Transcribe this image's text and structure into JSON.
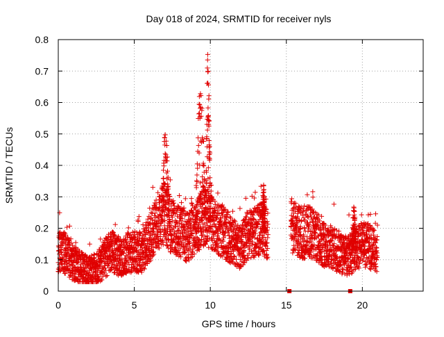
{
  "chart_data": {
    "type": "scatter",
    "title": "Day 018 of 2024, SRMTID for receiver nyls",
    "xlabel": "GPS time / hours",
    "ylabel": "SRMTID / TECUs",
    "xlim": [
      0,
      24
    ],
    "ylim": [
      0,
      0.8
    ],
    "xticks": [
      "0",
      "5",
      "10",
      "15",
      "20"
    ],
    "yticks": [
      "0",
      "0.1",
      "0.2",
      "0.3",
      "0.4",
      "0.5",
      "0.6",
      "0.7",
      "0.8"
    ],
    "grid": true,
    "marker": "+",
    "color": "#e00000",
    "profile_hours": [
      0,
      0.3,
      0.6,
      1.0,
      1.5,
      2.0,
      2.5,
      3.0,
      3.5,
      4.0,
      4.5,
      5.0,
      5.5,
      6.0,
      6.5,
      7.0,
      7.5,
      8.0,
      8.5,
      9.0,
      9.5,
      10.0,
      10.5,
      11.0,
      11.5,
      12.0,
      12.5,
      13.0,
      13.5,
      13.8,
      15.3,
      15.6,
      16.0,
      16.5,
      17.0,
      17.5,
      18.0,
      18.5,
      19.0,
      19.5,
      20.0,
      20.5,
      21.0
    ],
    "profile_tecu": [
      0.12,
      0.13,
      0.11,
      0.09,
      0.07,
      0.06,
      0.07,
      0.1,
      0.13,
      0.11,
      0.12,
      0.13,
      0.12,
      0.17,
      0.22,
      0.25,
      0.2,
      0.19,
      0.17,
      0.2,
      0.24,
      0.22,
      0.2,
      0.18,
      0.16,
      0.14,
      0.18,
      0.19,
      0.2,
      0.17,
      0.21,
      0.2,
      0.18,
      0.19,
      0.17,
      0.15,
      0.14,
      0.12,
      0.11,
      0.13,
      0.15,
      0.14,
      0.12
    ],
    "spikes": [
      {
        "start_hour": 6.8,
        "end_hour": 7.3,
        "peak_tecu": 0.51
      },
      {
        "start_hour": 9.0,
        "end_hour": 9.7,
        "peak_tecu": 0.65
      },
      {
        "start_hour": 9.7,
        "end_hour": 10.0,
        "peak_tecu": 0.77
      },
      {
        "start_hour": 13.4,
        "end_hour": 13.6,
        "peak_tecu": 0.34
      },
      {
        "start_hour": 19.3,
        "end_hour": 19.6,
        "peak_tecu": 0.27
      }
    ],
    "gap_markers": [
      {
        "hour": 15.2,
        "tecu": 0
      },
      {
        "hour": 19.2,
        "tecu": 0
      }
    ]
  }
}
